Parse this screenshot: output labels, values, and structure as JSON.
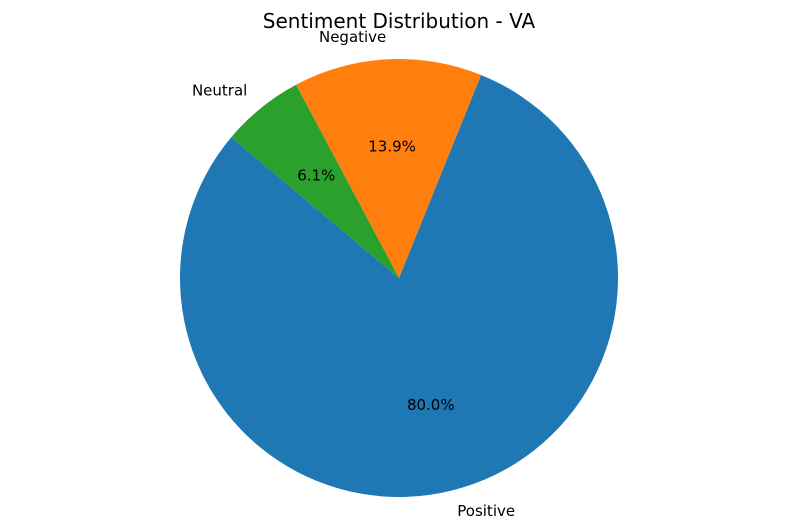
{
  "chart_data": {
    "type": "pie",
    "title": "Sentiment Distribution - VA",
    "categories": [
      "Positive",
      "Negative",
      "Neutral"
    ],
    "values": [
      80.0,
      13.9,
      6.1
    ],
    "value_labels": [
      "80.0%",
      "13.9%",
      "6.1%"
    ],
    "colors": [
      "#1f77b4",
      "#ff7f0e",
      "#2ca02c"
    ],
    "start_angle_deg": 140,
    "direction": "counterclockwise",
    "legend": "none"
  }
}
